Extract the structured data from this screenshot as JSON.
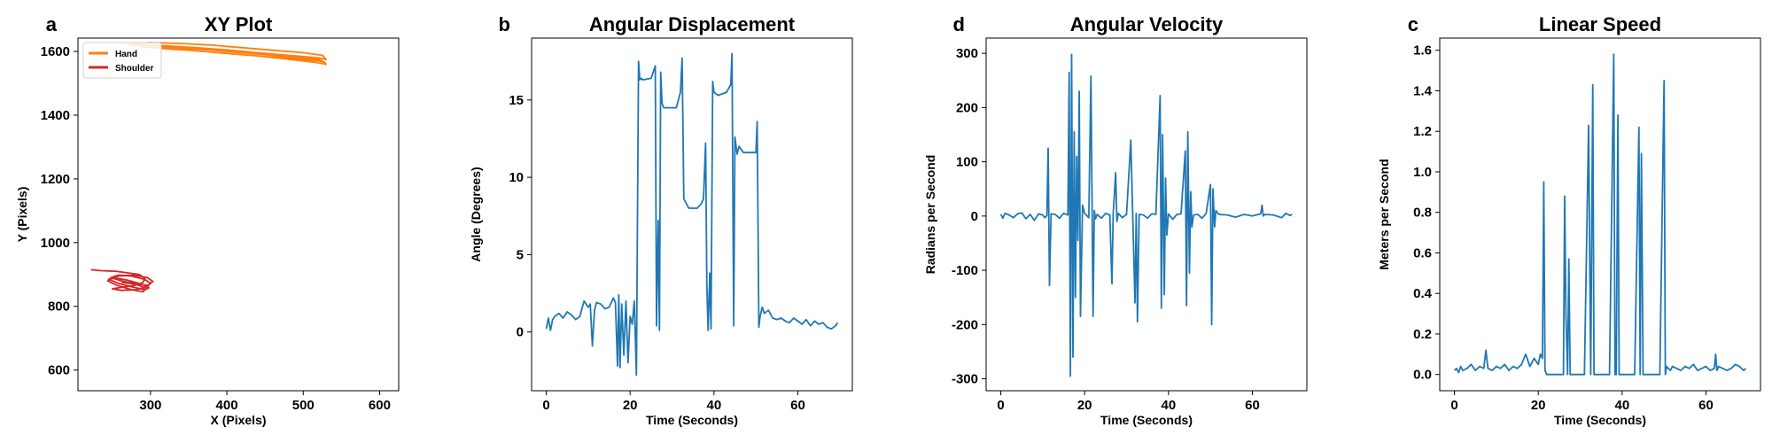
{
  "chart_data": [
    {
      "type": "line",
      "panel_letter": "a",
      "title": "XY Plot",
      "xlabel": "X (Pixels)",
      "ylabel": "Y (Pixels)",
      "xlim": [
        205,
        625
      ],
      "ylim": [
        535,
        1642
      ],
      "xticks": [
        300,
        400,
        500,
        600
      ],
      "yticks": [
        600,
        800,
        1000,
        1200,
        1400,
        1600
      ],
      "legend": "top-left",
      "series": [
        {
          "name": "Hand",
          "color": "#ff7f0e",
          "x": [
            270,
            300,
            340,
            380,
            420,
            460,
            500,
            525,
            530,
            520,
            480,
            440,
            400,
            360,
            320,
            290,
            275,
            295,
            330,
            370,
            410,
            450,
            490,
            520,
            528,
            518,
            490,
            450,
            410,
            370,
            330,
            300,
            290,
            310,
            350,
            390,
            430,
            470,
            505,
            527,
            530,
            515,
            480,
            440,
            400,
            360,
            330,
            320
          ],
          "y": [
            1622,
            1628,
            1625,
            1620,
            1612,
            1604,
            1596,
            1588,
            1575,
            1580,
            1588,
            1596,
            1605,
            1612,
            1618,
            1622,
            1620,
            1617,
            1614,
            1608,
            1600,
            1592,
            1584,
            1576,
            1566,
            1572,
            1580,
            1590,
            1598,
            1606,
            1612,
            1616,
            1614,
            1610,
            1604,
            1596,
            1588,
            1580,
            1574,
            1568,
            1560,
            1566,
            1576,
            1586,
            1594,
            1602,
            1608,
            1612
          ]
        },
        {
          "name": "Shoulder",
          "color": "#d62728",
          "x": [
            222,
            235,
            255,
            270,
            285,
            293,
            290,
            278,
            262,
            250,
            262,
            280,
            295,
            300,
            292,
            275,
            258,
            248,
            262,
            282,
            297,
            303,
            296,
            278,
            258,
            245,
            258,
            278,
            292,
            298,
            288,
            270,
            252,
            244,
            256,
            275,
            290,
            295,
            282,
            262
          ],
          "y": [
            915,
            912,
            910,
            905,
            900,
            888,
            875,
            865,
            860,
            855,
            850,
            852,
            860,
            872,
            885,
            895,
            898,
            890,
            880,
            870,
            866,
            878,
            890,
            898,
            895,
            885,
            872,
            860,
            852,
            858,
            870,
            882,
            890,
            880,
            866,
            852,
            846,
            856,
            868,
            876
          ]
        }
      ]
    },
    {
      "type": "line",
      "panel_letter": "b",
      "title": "Angular Displacement",
      "xlabel": "Time (Seconds)",
      "ylabel": "Angle (Degrees)",
      "xlim": [
        -3.5,
        73
      ],
      "ylim": [
        -3.8,
        19
      ],
      "xticks": [
        0,
        20,
        40,
        60
      ],
      "yticks": [
        0,
        5,
        10,
        15
      ],
      "series": [
        {
          "name": "",
          "color": "#1f77b4",
          "x": [
            0,
            0.5,
            1,
            1.5,
            2,
            3,
            4,
            5,
            6,
            7,
            8,
            9,
            10,
            10.5,
            11,
            11.5,
            12,
            13,
            14,
            15,
            16,
            16.5,
            17,
            17.3,
            17.6,
            18,
            18.5,
            19,
            19.5,
            20,
            20.5,
            21,
            21.5,
            22,
            22.3,
            22.7,
            23,
            25,
            26,
            26.3,
            26.7,
            27,
            27.3,
            27.6,
            28,
            29,
            31,
            32,
            32.4,
            32.8,
            34,
            36,
            37,
            37.5,
            38,
            38.3,
            38.6,
            39,
            39.3,
            39.7,
            40,
            41,
            43,
            44,
            44.3,
            44.7,
            45,
            45.5,
            46,
            47,
            49,
            50,
            50.3,
            50.7,
            51,
            51.5,
            52,
            53,
            54,
            55,
            56,
            57,
            58,
            59,
            60,
            61,
            62,
            63,
            64,
            65,
            66,
            67,
            68,
            69,
            69.5
          ],
          "y": [
            0.2,
            0.9,
            0.1,
            0.8,
            1.0,
            1.2,
            0.9,
            1.3,
            1.1,
            0.8,
            1.0,
            2.0,
            1.6,
            1.8,
            -0.9,
            1.4,
            1.9,
            1.8,
            1.5,
            1.6,
            2.2,
            1.9,
            -2.2,
            2.4,
            -2.3,
            1.8,
            -1.5,
            2.0,
            -2.0,
            1.0,
            0.5,
            2.0,
            -2.8,
            17.5,
            16.3,
            16.4,
            16.3,
            16.4,
            17.2,
            0.4,
            7.2,
            0.1,
            16.8,
            14.8,
            14.5,
            14.5,
            14.5,
            15.5,
            17.7,
            8.6,
            8.0,
            8.0,
            8.3,
            8.6,
            12.2,
            3.0,
            0.1,
            3.8,
            0.2,
            16.2,
            15.5,
            15.3,
            15.5,
            16.0,
            18.0,
            0.4,
            12.6,
            11.5,
            12.0,
            11.6,
            11.6,
            11.6,
            13.6,
            0.3,
            1.0,
            1.6,
            1.2,
            1.4,
            0.9,
            0.8,
            0.9,
            0.7,
            0.6,
            0.9,
            0.7,
            0.5,
            0.8,
            0.4,
            0.7,
            0.5,
            0.6,
            0.3,
            0.2,
            0.4,
            0.6
          ]
        }
      ]
    },
    {
      "type": "line",
      "panel_letter": "d",
      "title": "Angular Velocity",
      "xlabel": "Time (Seconds)",
      "ylabel": "Radians per Second",
      "xlim": [
        -3.5,
        73
      ],
      "ylim": [
        -322,
        328
      ],
      "xticks": [
        0,
        20,
        40,
        60
      ],
      "yticks": [
        -300,
        -200,
        -100,
        0,
        100,
        200,
        300
      ],
      "series": [
        {
          "name": "",
          "color": "#1f77b4",
          "x": [
            0,
            0.5,
            1,
            2,
            3,
            4,
            5,
            6,
            7,
            8,
            9,
            10,
            10.5,
            11,
            11.3,
            11.6,
            12,
            13,
            14,
            15,
            16,
            16.3,
            16.6,
            16.9,
            17.2,
            17.5,
            17.8,
            18.1,
            18.4,
            18.7,
            19,
            19.5,
            20,
            21,
            21.5,
            22,
            22.3,
            22.6,
            23,
            24,
            25,
            26,
            26.5,
            26.8,
            27.1,
            27.4,
            27.7,
            28,
            29,
            30,
            31,
            32,
            32.3,
            32.6,
            33,
            34,
            35,
            36,
            37,
            38,
            38.3,
            38.6,
            39,
            39.3,
            39.6,
            40,
            41,
            42,
            43,
            44,
            44.3,
            44.6,
            45,
            45.3,
            45.6,
            46,
            47,
            48,
            49,
            50,
            50.3,
            50.6,
            51,
            51.3,
            52,
            54,
            56,
            58,
            60,
            62,
            62.3,
            62.6,
            63,
            65,
            67,
            68,
            69,
            69.5
          ],
          "y": [
            3,
            -4,
            5,
            2,
            -3,
            4,
            6,
            -5,
            3,
            -8,
            4,
            2,
            -3,
            1,
            125,
            -128,
            4,
            3,
            -4,
            5,
            2,
            265,
            -295,
            298,
            -260,
            155,
            -150,
            110,
            -45,
            230,
            -185,
            20,
            5,
            -3,
            258,
            -185,
            10,
            -5,
            3,
            -4,
            5,
            2,
            -125,
            4,
            40,
            80,
            -10,
            5,
            -3,
            3,
            140,
            -160,
            5,
            -195,
            3,
            2,
            -4,
            4,
            3,
            222,
            -170,
            150,
            -145,
            70,
            -35,
            4,
            -6,
            3,
            4,
            120,
            -165,
            155,
            -105,
            45,
            -20,
            2,
            3,
            -4,
            5,
            58,
            -200,
            50,
            -20,
            10,
            3,
            2,
            -2,
            3,
            0,
            4,
            20,
            0,
            3,
            2,
            -3,
            5,
            1,
            3
          ]
        }
      ]
    },
    {
      "type": "line",
      "panel_letter": "c",
      "title": "Linear Speed",
      "xlabel": "Time (Seconds)",
      "ylabel": "Meters per Second",
      "xlim": [
        -3.5,
        73
      ],
      "ylim": [
        -0.08,
        1.66
      ],
      "xticks": [
        0,
        20,
        40,
        60
      ],
      "yticks": [
        0.0,
        0.2,
        0.4,
        0.6,
        0.8,
        1.0,
        1.2,
        1.4,
        1.6
      ],
      "series": [
        {
          "name": "",
          "color": "#1f77b4",
          "x": [
            0,
            0.5,
            1,
            1.5,
            2,
            3,
            4,
            5,
            6,
            7,
            7.5,
            8,
            9,
            10,
            11,
            12,
            13,
            14,
            15,
            16,
            17,
            18,
            19,
            20,
            20.5,
            21,
            21.3,
            21.6,
            22,
            22.3,
            22.6,
            23,
            24,
            25,
            26,
            26.3,
            26.6,
            27,
            27.3,
            27.6,
            28,
            29,
            30,
            31,
            32,
            32.5,
            33,
            33.3,
            33.6,
            34,
            35,
            36,
            37,
            38,
            38.3,
            38.6,
            39,
            39.3,
            39.6,
            40,
            41,
            42,
            43,
            44,
            44.3,
            44.6,
            45,
            45.3,
            45.6,
            46,
            47,
            48,
            49,
            50,
            50.3,
            50.6,
            51,
            51.5,
            52,
            53,
            54,
            55,
            56,
            57,
            58,
            59,
            60,
            61,
            62,
            62.3,
            62.6,
            63,
            64,
            65,
            66,
            67,
            68,
            69,
            69.5
          ],
          "y": [
            0.02,
            0.03,
            0.01,
            0.04,
            0.02,
            0.03,
            0.05,
            0.02,
            0.04,
            0.03,
            0.12,
            0.03,
            0.02,
            0.04,
            0.03,
            0.05,
            0.02,
            0.04,
            0.03,
            0.05,
            0.1,
            0.04,
            0.08,
            0.05,
            0.1,
            0.08,
            0.95,
            0.02,
            0.0,
            0.0,
            0.0,
            0.0,
            0.0,
            0.0,
            0.0,
            0.88,
            0.3,
            0.0,
            0.57,
            0.0,
            0.0,
            0.0,
            0.0,
            0.0,
            1.23,
            0.0,
            1.43,
            0.0,
            0.0,
            0.0,
            0.0,
            0.0,
            0.0,
            1.58,
            0.0,
            0.0,
            1.28,
            0.0,
            0.0,
            0.0,
            0.0,
            0.0,
            0.0,
            1.22,
            0.0,
            1.09,
            0.0,
            0.0,
            0.0,
            0.0,
            0.0,
            0.0,
            0.0,
            1.45,
            0.0,
            0.04,
            0.03,
            0.02,
            0.04,
            0.03,
            0.02,
            0.04,
            0.03,
            0.05,
            0.02,
            0.03,
            0.04,
            0.02,
            0.03,
            0.1,
            0.02,
            0.04,
            0.03,
            0.02,
            0.03,
            0.05,
            0.04,
            0.02,
            0.03
          ]
        }
      ]
    }
  ]
}
